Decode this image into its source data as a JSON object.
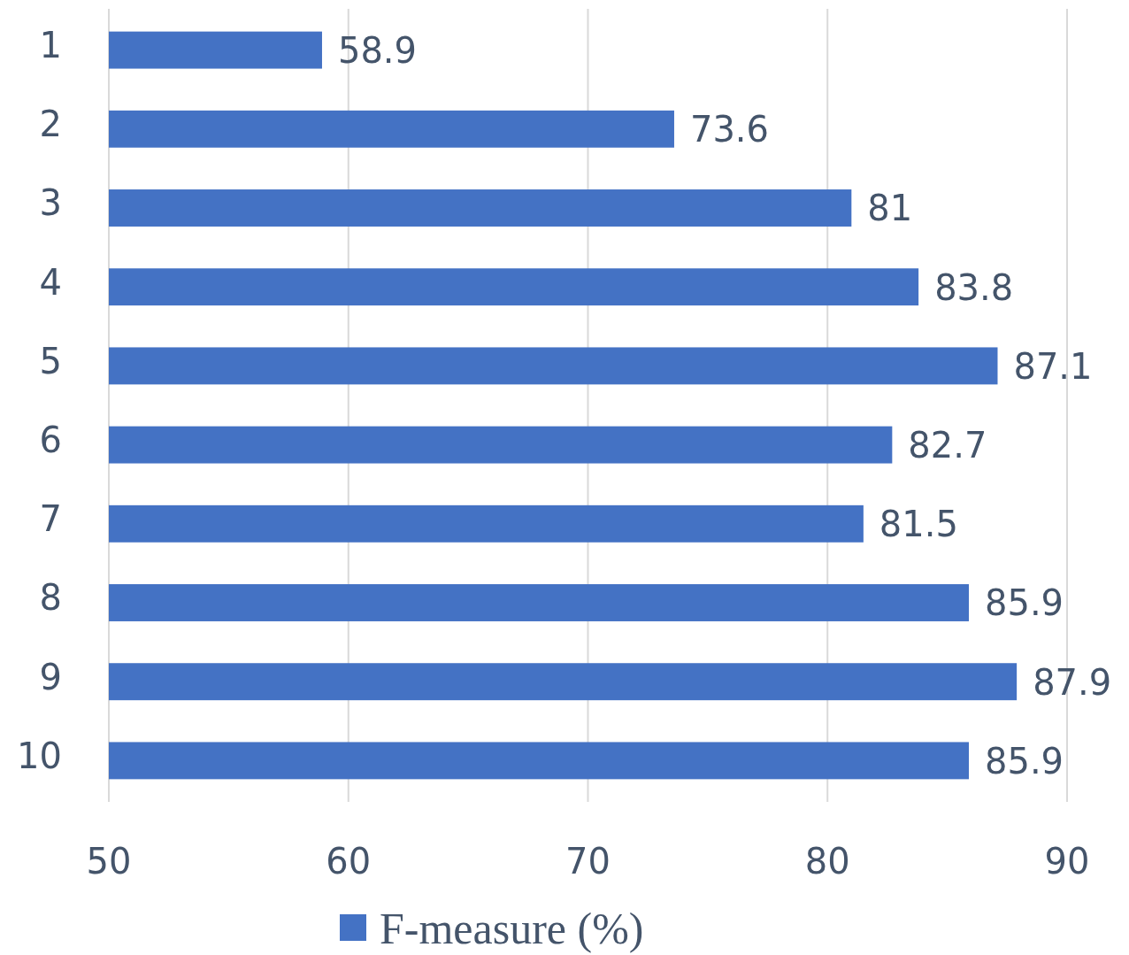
{
  "chart_data": {
    "type": "bar",
    "orientation": "horizontal",
    "categories": [
      "1",
      "2",
      "3",
      "4",
      "5",
      "6",
      "7",
      "8",
      "9",
      "10"
    ],
    "series": [
      {
        "name": "F-measure (%)",
        "color": "#4472c4",
        "values": [
          58.9,
          73.6,
          81,
          83.8,
          87.1,
          82.7,
          81.5,
          85.9,
          87.9,
          85.9
        ]
      }
    ],
    "xlim": [
      50,
      90
    ],
    "xticks": [
      50,
      60,
      70,
      80,
      90
    ],
    "grid": "x",
    "legend": "bottom",
    "data_labels": true
  }
}
